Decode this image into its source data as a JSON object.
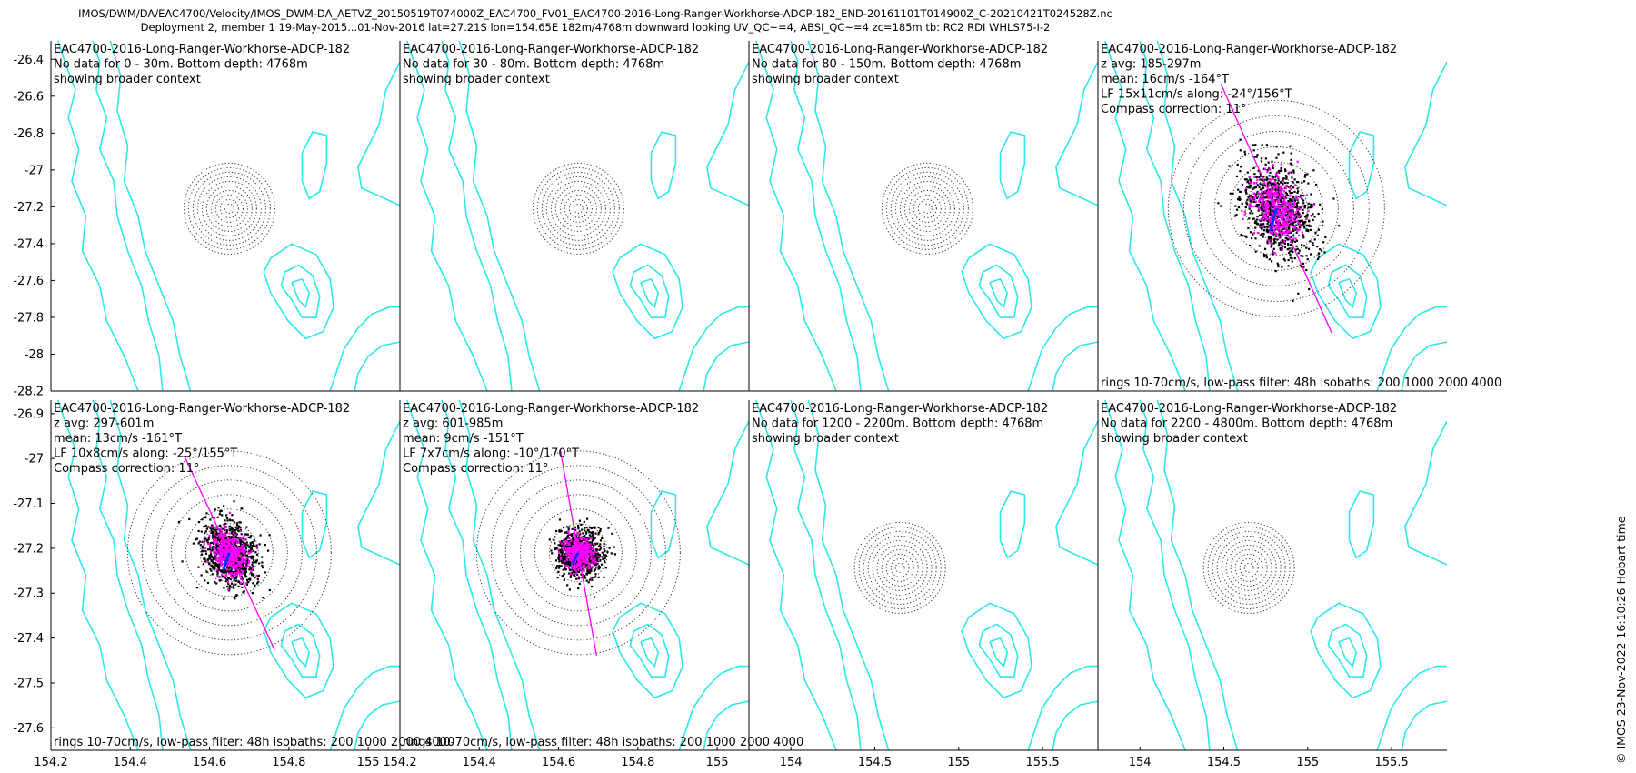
{
  "header": {
    "line1": "IMOS/DWM/DA/EAC4700/Velocity/IMOS_DWM-DA_AETVZ_20150519T074000Z_EAC4700_FV01_EAC4700-2016-Long-Ranger-Workhorse-ADCP-182_END-20161101T014900Z_C-20210421T024528Z.nc",
    "line2": "Deployment 2, member 1 19-May-2015...01-Nov-2016 lat=27.21S lon=154.65E 182m/4768m downward looking UV_QC~=4, ABSI_QC~=4 zc=185m tb: RC2 RDI WHLS75-I-2"
  },
  "side_note": "© IMOS 23-Nov-2022 16:10:26 Hobart time",
  "colors": {
    "isobath": "#2ee8e8",
    "scatter_raw": "#000000",
    "scatter_lowpass": "#ff00ff",
    "mean_vector": "#0033ff",
    "ellipse_axis": "#ff00ff",
    "rings": "#333333"
  },
  "chart_data": [
    {
      "type": "scatter",
      "panel": 1,
      "xlim": [
        154.2,
        155.08
      ],
      "ylim": [
        -28.2,
        -26.3
      ],
      "yticks": [
        "-26.4",
        "-26.6",
        "-26.8",
        "-27",
        "-27.2",
        "-27.4",
        "-27.6",
        "-27.8",
        "-28",
        "-28.2"
      ],
      "xticks": [],
      "annotation": [
        "EAC4700-2016-Long-Ranger-Workhorse-ADCP-182",
        "No data for 0 - 30m. Bottom depth: 4768m",
        "showing broader context"
      ],
      "footer": "",
      "has_data": false,
      "center": [
        154.65,
        -27.21
      ]
    },
    {
      "type": "scatter",
      "panel": 2,
      "xlim": [
        154.2,
        155.08
      ],
      "ylim": [
        -28.2,
        -26.3
      ],
      "yticks": [],
      "xticks": [],
      "annotation": [
        "EAC4700-2016-Long-Ranger-Workhorse-ADCP-182",
        "No data for 30 - 80m. Bottom depth: 4768m",
        "showing broader context"
      ],
      "footer": "",
      "has_data": false,
      "center": [
        154.65,
        -27.21
      ]
    },
    {
      "type": "scatter",
      "panel": 3,
      "xlim": [
        154.2,
        155.08
      ],
      "ylim": [
        -28.2,
        -26.3
      ],
      "yticks": [],
      "xticks": [],
      "annotation": [
        "EAC4700-2016-Long-Ranger-Workhorse-ADCP-182",
        "No data for 80 - 150m. Bottom depth: 4768m",
        "showing broader context"
      ],
      "footer": "",
      "has_data": false,
      "center": [
        154.65,
        -27.21
      ]
    },
    {
      "type": "scatter",
      "panel": 4,
      "xlim": [
        154.2,
        155.08
      ],
      "ylim": [
        -28.2,
        -26.3
      ],
      "yticks": [],
      "xticks": [],
      "annotation": [
        "EAC4700-2016-Long-Ranger-Workhorse-ADCP-182",
        "z avg: 185-297m",
        "mean: 16cm/s -164°T",
        "LF 15x11cm/s along: -24°/156°T",
        "Compass correction: 11°"
      ],
      "footer": "rings 10-70cm/s, low-pass filter: 48h isobaths: 200 1000 2000 4000",
      "has_data": true,
      "center": [
        154.65,
        -27.21
      ],
      "mean_speed_cms": 16,
      "mean_dir_degT": -164,
      "lf_major_cms": 15,
      "lf_minor_cms": 11,
      "along_dir_degT": -24
    },
    {
      "type": "scatter",
      "panel": 5,
      "xlim": [
        154.2,
        155.08
      ],
      "ylim": [
        -27.65,
        -26.87
      ],
      "yticks": [
        "-26.9",
        "-27",
        "-27.1",
        "-27.2",
        "-27.3",
        "-27.4",
        "-27.5",
        "-27.6"
      ],
      "xticks": [
        "154.2",
        "154.4",
        "154.6",
        "154.8",
        "155"
      ],
      "annotation": [
        "EAC4700-2016-Long-Ranger-Workhorse-ADCP-182",
        "z avg: 297-601m",
        "mean: 13cm/s -161°T",
        "LF 10x8cm/s along: -25°/155°T",
        "Compass correction: 11°"
      ],
      "footer": "rings 10-70cm/s, low-pass filter: 48h isobaths: 200 1000 2000 4000",
      "has_data": true,
      "center": [
        154.65,
        -27.21
      ],
      "mean_speed_cms": 13,
      "mean_dir_degT": -161,
      "lf_major_cms": 10,
      "lf_minor_cms": 8,
      "along_dir_degT": -25
    },
    {
      "type": "scatter",
      "panel": 6,
      "xlim": [
        154.2,
        155.08
      ],
      "ylim": [
        -27.65,
        -26.87
      ],
      "yticks": [],
      "xticks": [
        "154.2",
        "154.4",
        "154.6",
        "154.8",
        "155"
      ],
      "annotation": [
        "EAC4700-2016-Long-Ranger-Workhorse-ADCP-182",
        "z avg: 601-985m",
        "mean: 9cm/s -151°T",
        "LF 7x7cm/s along: -10°/170°T",
        "Compass correction: 11°"
      ],
      "footer": "rings 10-70cm/s, low-pass filter: 48h isobaths: 200 1000 2000 4000",
      "has_data": true,
      "center": [
        154.65,
        -27.21
      ],
      "mean_speed_cms": 9,
      "mean_dir_degT": -151,
      "lf_major_cms": 7,
      "lf_minor_cms": 7,
      "along_dir_degT": -10
    },
    {
      "type": "scatter",
      "panel": 7,
      "xlim": [
        153.75,
        155.83
      ],
      "ylim": [
        -28.2,
        -26.3
      ],
      "yticks": [],
      "xticks": [
        "154",
        "154.5",
        "155",
        "155.5"
      ],
      "annotation": [
        "EAC4700-2016-Long-Ranger-Workhorse-ADCP-182",
        "No data for 1200 - 2200m. Bottom depth: 4768m",
        "showing broader context"
      ],
      "footer": "",
      "has_data": false,
      "center": [
        154.65,
        -27.21
      ]
    },
    {
      "type": "scatter",
      "panel": 8,
      "xlim": [
        153.75,
        155.83
      ],
      "ylim": [
        -28.2,
        -26.3
      ],
      "yticks": [],
      "xticks": [
        "154",
        "154.5",
        "155",
        "155.5"
      ],
      "annotation": [
        "EAC4700-2016-Long-Ranger-Workhorse-ADCP-182",
        "No data for 2200 - 4800m. Bottom depth: 4768m",
        "showing broader context"
      ],
      "footer": "",
      "has_data": false,
      "center": [
        154.65,
        -27.21
      ]
    }
  ]
}
